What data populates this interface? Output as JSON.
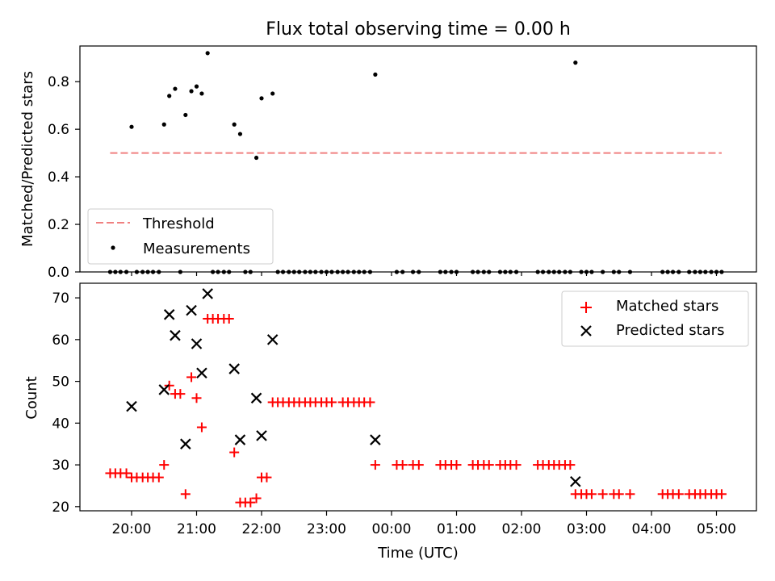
{
  "chart_data": [
    {
      "type": "scatter",
      "title": "Flux total observing time = 0.00 h",
      "ylabel": "Matched/Predicted stars",
      "xlabel": "",
      "ylim": [
        0,
        0.95
      ],
      "y_ticks": [
        "0.0",
        "0.2",
        "0.4",
        "0.6",
        "0.8"
      ],
      "legend_position": "lower-left",
      "threshold": {
        "name": "Threshold",
        "color": "#f08080",
        "x_start": -0.33,
        "x_end": 9.08,
        "y": 0.5
      },
      "series": [
        {
          "name": "Measurements",
          "color": "#000000",
          "points": [
            [
              -0.33,
              0
            ],
            [
              -0.25,
              0
            ],
            [
              -0.17,
              0
            ],
            [
              -0.08,
              0
            ],
            [
              0.0,
              0.61
            ],
            [
              0.08,
              0
            ],
            [
              0.17,
              0
            ],
            [
              0.25,
              0
            ],
            [
              0.33,
              0
            ],
            [
              0.42,
              0
            ],
            [
              0.5,
              0.62
            ],
            [
              0.58,
              0.74
            ],
            [
              0.67,
              0.77
            ],
            [
              0.75,
              0
            ],
            [
              0.83,
              0.66
            ],
            [
              0.92,
              0.76
            ],
            [
              1.0,
              0.78
            ],
            [
              1.08,
              0.75
            ],
            [
              1.17,
              0.92
            ],
            [
              1.25,
              0
            ],
            [
              1.33,
              0
            ],
            [
              1.42,
              0
            ],
            [
              1.5,
              0
            ],
            [
              1.58,
              0.62
            ],
            [
              1.67,
              0.58
            ],
            [
              1.75,
              0
            ],
            [
              1.83,
              0
            ],
            [
              1.92,
              0.48
            ],
            [
              2.0,
              0.73
            ],
            [
              2.17,
              0.75
            ],
            [
              2.25,
              0
            ],
            [
              2.33,
              0
            ],
            [
              2.42,
              0
            ],
            [
              2.5,
              0
            ],
            [
              2.58,
              0
            ],
            [
              2.67,
              0
            ],
            [
              2.75,
              0
            ],
            [
              2.83,
              0
            ],
            [
              2.92,
              0
            ],
            [
              3.0,
              0
            ],
            [
              3.08,
              0
            ],
            [
              3.17,
              0
            ],
            [
              3.25,
              0
            ],
            [
              3.33,
              0
            ],
            [
              3.42,
              0
            ],
            [
              3.5,
              0
            ],
            [
              3.58,
              0
            ],
            [
              3.67,
              0
            ],
            [
              3.75,
              0.83
            ],
            [
              4.08,
              0
            ],
            [
              4.17,
              0
            ],
            [
              4.33,
              0
            ],
            [
              4.42,
              0
            ],
            [
              4.75,
              0
            ],
            [
              4.83,
              0
            ],
            [
              4.92,
              0
            ],
            [
              5.0,
              0
            ],
            [
              5.25,
              0
            ],
            [
              5.33,
              0
            ],
            [
              5.42,
              0
            ],
            [
              5.5,
              0
            ],
            [
              5.67,
              0
            ],
            [
              5.75,
              0
            ],
            [
              5.83,
              0
            ],
            [
              5.92,
              0
            ],
            [
              6.25,
              0
            ],
            [
              6.33,
              0
            ],
            [
              6.42,
              0
            ],
            [
              6.5,
              0
            ],
            [
              6.58,
              0
            ],
            [
              6.67,
              0
            ],
            [
              6.75,
              0
            ],
            [
              6.83,
              0.88
            ],
            [
              6.92,
              0
            ],
            [
              7.0,
              0
            ],
            [
              7.08,
              0
            ],
            [
              7.25,
              0
            ],
            [
              7.42,
              0
            ],
            [
              7.5,
              0
            ],
            [
              7.67,
              0
            ],
            [
              8.17,
              0
            ],
            [
              8.25,
              0
            ],
            [
              8.33,
              0
            ],
            [
              8.42,
              0
            ],
            [
              8.58,
              0
            ],
            [
              8.67,
              0
            ],
            [
              8.75,
              0
            ],
            [
              8.83,
              0
            ],
            [
              8.92,
              0
            ],
            [
              9.0,
              0
            ],
            [
              9.08,
              0
            ]
          ]
        }
      ]
    },
    {
      "type": "scatter",
      "title": "",
      "ylabel": "Count",
      "xlabel": "Time (UTC)",
      "ylim": [
        19,
        73.5
      ],
      "y_ticks": [
        "20",
        "30",
        "40",
        "50",
        "60",
        "70"
      ],
      "x_ticks": [
        "20:00",
        "21:00",
        "22:00",
        "23:00",
        "00:00",
        "01:00",
        "02:00",
        "03:00",
        "04:00",
        "05:00"
      ],
      "legend_position": "upper-right",
      "series": [
        {
          "name": "Matched stars",
          "marker": "plus",
          "color": "#ff0000",
          "points": [
            [
              -0.33,
              28
            ],
            [
              -0.25,
              28
            ],
            [
              -0.17,
              28
            ],
            [
              -0.08,
              28
            ],
            [
              0.0,
              27
            ],
            [
              0.08,
              27
            ],
            [
              0.17,
              27
            ],
            [
              0.25,
              27
            ],
            [
              0.33,
              27
            ],
            [
              0.42,
              27
            ],
            [
              0.5,
              30
            ],
            [
              0.58,
              49
            ],
            [
              0.67,
              47
            ],
            [
              0.75,
              47
            ],
            [
              0.83,
              23
            ],
            [
              0.92,
              51
            ],
            [
              1.0,
              46
            ],
            [
              1.08,
              39
            ],
            [
              1.17,
              65
            ],
            [
              1.25,
              65
            ],
            [
              1.33,
              65
            ],
            [
              1.42,
              65
            ],
            [
              1.5,
              65
            ],
            [
              1.58,
              33
            ],
            [
              1.67,
              21
            ],
            [
              1.75,
              21
            ],
            [
              1.83,
              21
            ],
            [
              1.92,
              22
            ],
            [
              2.0,
              27
            ],
            [
              2.08,
              27
            ],
            [
              2.17,
              45
            ],
            [
              2.25,
              45
            ],
            [
              2.33,
              45
            ],
            [
              2.42,
              45
            ],
            [
              2.5,
              45
            ],
            [
              2.58,
              45
            ],
            [
              2.67,
              45
            ],
            [
              2.75,
              45
            ],
            [
              2.83,
              45
            ],
            [
              2.92,
              45
            ],
            [
              3.0,
              45
            ],
            [
              3.08,
              45
            ],
            [
              3.25,
              45
            ],
            [
              3.33,
              45
            ],
            [
              3.42,
              45
            ],
            [
              3.5,
              45
            ],
            [
              3.58,
              45
            ],
            [
              3.67,
              45
            ],
            [
              3.75,
              30
            ],
            [
              4.08,
              30
            ],
            [
              4.17,
              30
            ],
            [
              4.33,
              30
            ],
            [
              4.42,
              30
            ],
            [
              4.75,
              30
            ],
            [
              4.83,
              30
            ],
            [
              4.92,
              30
            ],
            [
              5.0,
              30
            ],
            [
              5.25,
              30
            ],
            [
              5.33,
              30
            ],
            [
              5.42,
              30
            ],
            [
              5.5,
              30
            ],
            [
              5.67,
              30
            ],
            [
              5.75,
              30
            ],
            [
              5.83,
              30
            ],
            [
              5.92,
              30
            ],
            [
              6.25,
              30
            ],
            [
              6.33,
              30
            ],
            [
              6.42,
              30
            ],
            [
              6.5,
              30
            ],
            [
              6.58,
              30
            ],
            [
              6.67,
              30
            ],
            [
              6.75,
              30
            ],
            [
              6.83,
              23
            ],
            [
              6.92,
              23
            ],
            [
              7.0,
              23
            ],
            [
              7.08,
              23
            ],
            [
              7.25,
              23
            ],
            [
              7.42,
              23
            ],
            [
              7.5,
              23
            ],
            [
              7.67,
              23
            ],
            [
              8.17,
              23
            ],
            [
              8.25,
              23
            ],
            [
              8.33,
              23
            ],
            [
              8.42,
              23
            ],
            [
              8.58,
              23
            ],
            [
              8.67,
              23
            ],
            [
              8.75,
              23
            ],
            [
              8.83,
              23
            ],
            [
              8.92,
              23
            ],
            [
              9.0,
              23
            ],
            [
              9.08,
              23
            ]
          ]
        },
        {
          "name": "Predicted stars",
          "marker": "x",
          "color": "#000000",
          "points": [
            [
              0.0,
              44
            ],
            [
              0.5,
              48
            ],
            [
              0.58,
              66
            ],
            [
              0.67,
              61
            ],
            [
              0.83,
              35
            ],
            [
              0.92,
              67
            ],
            [
              1.0,
              59
            ],
            [
              1.08,
              52
            ],
            [
              1.17,
              71
            ],
            [
              1.58,
              53
            ],
            [
              1.67,
              36
            ],
            [
              1.92,
              46
            ],
            [
              2.0,
              37
            ],
            [
              2.17,
              60
            ],
            [
              3.75,
              36
            ],
            [
              6.83,
              26
            ]
          ]
        }
      ]
    }
  ]
}
